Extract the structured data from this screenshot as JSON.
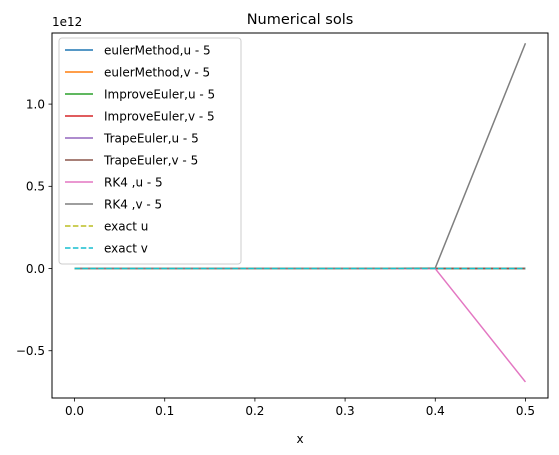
{
  "chart_data": {
    "type": "line",
    "title": "Numerical sols",
    "xlabel": "x",
    "ylabel": "",
    "y_offset_label": "1e12",
    "xlim": [
      -0.025,
      0.525
    ],
    "ylim": [
      -0.7875,
      1.4325
    ],
    "x_ticks": [
      0.0,
      0.1,
      0.2,
      0.3,
      0.4,
      0.5
    ],
    "x_tick_labels": [
      "0.0",
      "0.1",
      "0.2",
      "0.3",
      "0.4",
      "0.5"
    ],
    "y_ticks": [
      -0.5,
      0.0,
      0.5,
      1.0
    ],
    "y_tick_labels": [
      "−0.5",
      "0.0",
      "0.5",
      "1.0"
    ],
    "grid": false,
    "legend_position": "top-left",
    "x": [
      0.0,
      0.1,
      0.2,
      0.3,
      0.4,
      0.5
    ],
    "series": [
      {
        "name": "eulerMethod,u - 5",
        "color": "#1f77b4",
        "dash": "solid",
        "values": [
          0,
          0,
          0,
          0,
          0,
          0
        ]
      },
      {
        "name": "eulerMethod,v - 5",
        "color": "#ff7f0e",
        "dash": "solid",
        "values": [
          0,
          0,
          0,
          0,
          0,
          0
        ]
      },
      {
        "name": "ImproveEuler,u - 5",
        "color": "#2ca02c",
        "dash": "solid",
        "values": [
          0,
          0,
          0,
          0,
          0,
          0
        ]
      },
      {
        "name": "ImproveEuler,v - 5",
        "color": "#d62728",
        "dash": "solid",
        "values": [
          0,
          0,
          0,
          0,
          0,
          0
        ]
      },
      {
        "name": "TrapeEuler,u - 5",
        "color": "#9467bd",
        "dash": "solid",
        "values": [
          0,
          0,
          0,
          0,
          0,
          0
        ]
      },
      {
        "name": "TrapeEuler,v - 5",
        "color": "#8c564b",
        "dash": "solid",
        "values": [
          0,
          0,
          0,
          0,
          0,
          0
        ]
      },
      {
        "name": "RK4 ,u - 5",
        "color": "#e377c2",
        "dash": "solid",
        "values": [
          0,
          0,
          0,
          0,
          -0.001,
          -0.69
        ]
      },
      {
        "name": "RK4 ,v - 5",
        "color": "#7f7f7f",
        "dash": "solid",
        "values": [
          0,
          0,
          0,
          0,
          0.003,
          1.37
        ]
      },
      {
        "name": "exact u",
        "color": "#bcbd22",
        "dash": "dashed",
        "values": [
          0,
          0,
          0,
          0,
          0,
          0
        ]
      },
      {
        "name": "exact v",
        "color": "#17becf",
        "dash": "dashed",
        "values": [
          0,
          0,
          0,
          0,
          0,
          0
        ]
      }
    ]
  }
}
